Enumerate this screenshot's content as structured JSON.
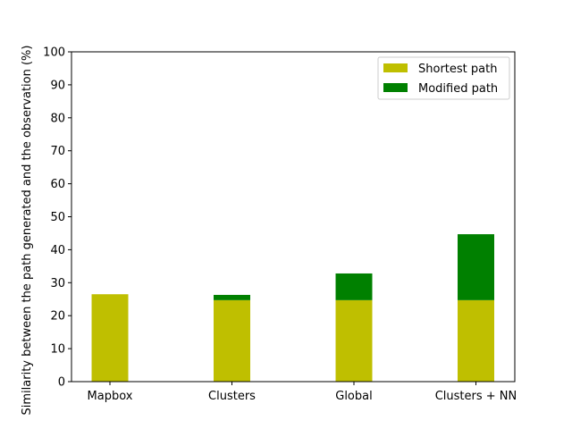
{
  "chart_data": {
    "type": "bar",
    "stacked": true,
    "categories": [
      "Mapbox",
      "Clusters",
      "Global",
      "Clusters + NN"
    ],
    "series": [
      {
        "name": "Shortest path",
        "values": [
          26.5,
          24.7,
          24.7,
          24.7
        ],
        "color": "#bfbf00"
      },
      {
        "name": "Modified path",
        "values": [
          0.0,
          1.6,
          8.1,
          20.0
        ],
        "color": "#008000"
      }
    ],
    "title": "",
    "xlabel": "",
    "ylabel": "Similarity between the path generated and the observation (%)",
    "ylim": [
      0,
      100
    ],
    "yticks": [
      0,
      10,
      20,
      30,
      40,
      50,
      60,
      70,
      80,
      90,
      100
    ],
    "grid": false,
    "legend_position": "top-right"
  }
}
